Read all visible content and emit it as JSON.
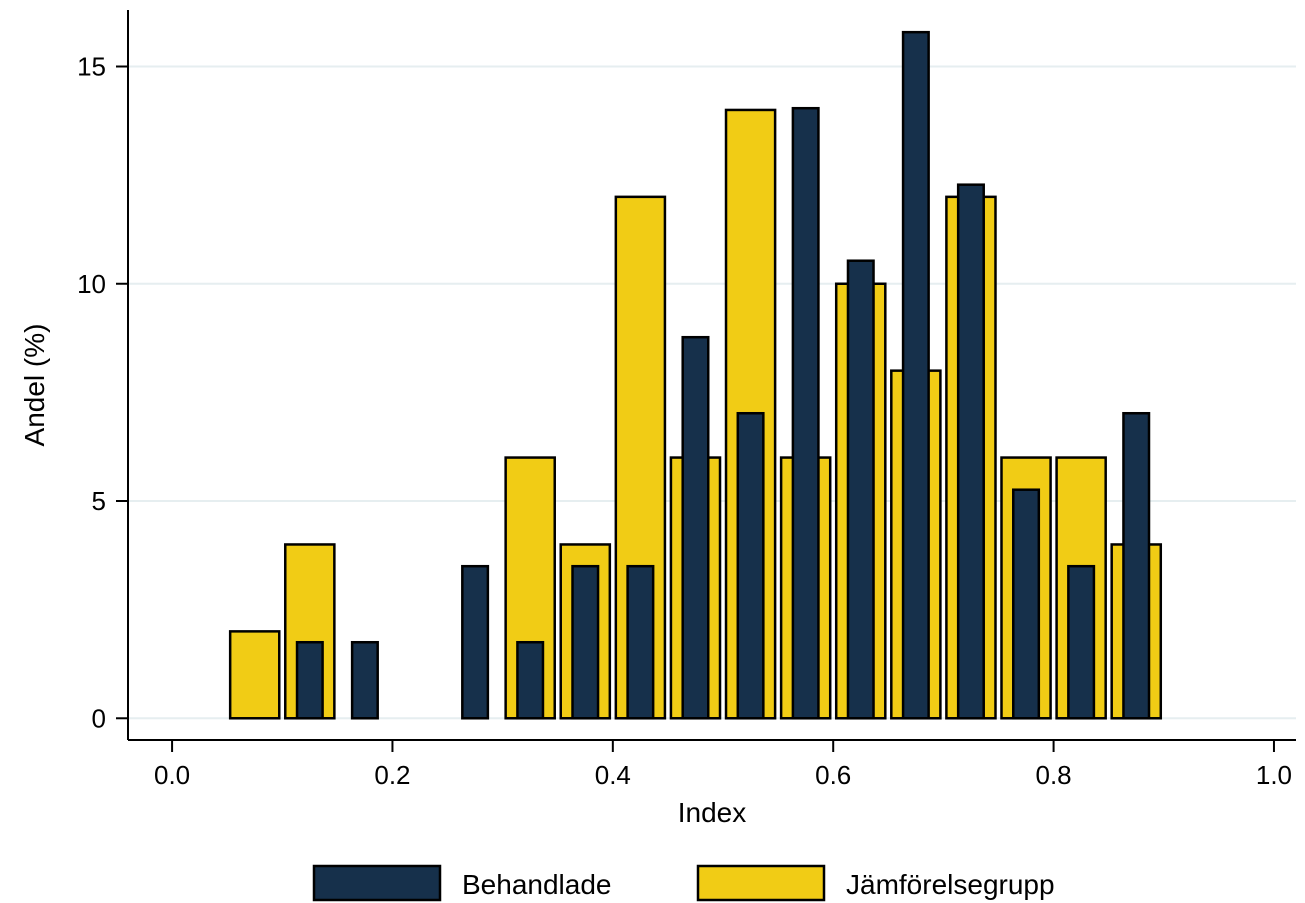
{
  "chart_data": {
    "type": "bar",
    "title": "",
    "xlabel": "Index",
    "ylabel": "Andel (%)",
    "xlim": [
      -0.04,
      1.02
    ],
    "ylim": [
      -0.5,
      16.3
    ],
    "xticks": [
      "0.0",
      "0.2",
      "0.4",
      "0.6",
      "0.8",
      "1.0"
    ],
    "yticks": [
      "0",
      "5",
      "10",
      "15"
    ],
    "grid": "horizontal",
    "legend": "bottom",
    "bin_width": 0.05,
    "series": [
      {
        "name": "Jämförelsegrupp",
        "color": "#f1cc15",
        "bars": [
          {
            "x": 0.075,
            "y": 2.0
          },
          {
            "x": 0.125,
            "y": 4.0
          },
          {
            "x": 0.325,
            "y": 6.0
          },
          {
            "x": 0.375,
            "y": 4.0
          },
          {
            "x": 0.425,
            "y": 12.0
          },
          {
            "x": 0.475,
            "y": 6.0
          },
          {
            "x": 0.525,
            "y": 14.0
          },
          {
            "x": 0.575,
            "y": 6.0
          },
          {
            "x": 0.625,
            "y": 10.0
          },
          {
            "x": 0.675,
            "y": 8.0
          },
          {
            "x": 0.725,
            "y": 12.0
          },
          {
            "x": 0.775,
            "y": 6.0
          },
          {
            "x": 0.825,
            "y": 6.0
          },
          {
            "x": 0.875,
            "y": 4.0
          }
        ]
      },
      {
        "name": "Behandlade",
        "color": "#16304b",
        "bars": [
          {
            "x": 0.125,
            "y": 1.75
          },
          {
            "x": 0.175,
            "y": 1.75
          },
          {
            "x": 0.275,
            "y": 3.5
          },
          {
            "x": 0.325,
            "y": 1.75
          },
          {
            "x": 0.375,
            "y": 3.5
          },
          {
            "x": 0.425,
            "y": 3.5
          },
          {
            "x": 0.475,
            "y": 8.77
          },
          {
            "x": 0.525,
            "y": 7.02
          },
          {
            "x": 0.575,
            "y": 14.04
          },
          {
            "x": 0.625,
            "y": 10.53
          },
          {
            "x": 0.675,
            "y": 15.79
          },
          {
            "x": 0.725,
            "y": 12.28
          },
          {
            "x": 0.775,
            "y": 5.26
          },
          {
            "x": 0.825,
            "y": 3.5
          },
          {
            "x": 0.875,
            "y": 7.02
          }
        ]
      }
    ]
  }
}
